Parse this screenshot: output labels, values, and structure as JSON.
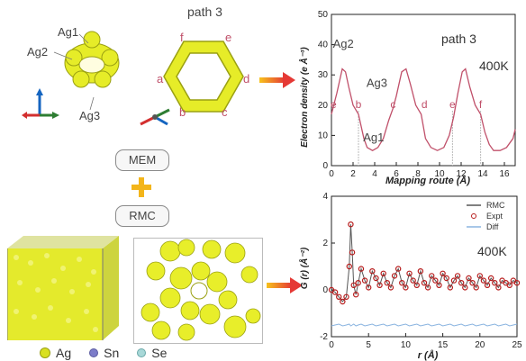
{
  "structures": {
    "ag_labels": [
      "Ag1",
      "Ag2",
      "Ag3"
    ],
    "path_title": "path 3",
    "ring_labels": [
      "f",
      "e",
      "a",
      "d",
      "b",
      "c"
    ]
  },
  "methods": {
    "mem": "MEM",
    "rmc": "RMC"
  },
  "legend": {
    "items": [
      {
        "symbol": "Ag",
        "color": "#d9e021"
      },
      {
        "symbol": "Sn",
        "color": "#7c7cc9"
      },
      {
        "symbol": "Se",
        "color": "#a8d8d8"
      }
    ]
  },
  "chart_data": [
    {
      "type": "line",
      "title": "path 3",
      "temperature": "400K",
      "xlabel": "Mapping route (Å)",
      "ylabel": "Electron density (e Å⁻³)",
      "xlim": [
        0,
        17
      ],
      "ylim": [
        0,
        50
      ],
      "xticks": [
        0,
        2,
        4,
        6,
        8,
        10,
        12,
        14,
        16
      ],
      "yticks": [
        0,
        10,
        20,
        30,
        40,
        50
      ],
      "annotations": [
        {
          "text": "Ag2",
          "x": 1.1,
          "y": 39
        },
        {
          "text": "Ag3",
          "x": 4.2,
          "y": 26
        },
        {
          "text": "Ag1",
          "x": 3.9,
          "y": 8
        },
        {
          "text": "e",
          "x": 0.2,
          "y": 19
        },
        {
          "text": "b",
          "x": 2.5,
          "y": 19
        },
        {
          "text": "c",
          "x": 5.7,
          "y": 19
        },
        {
          "text": "d",
          "x": 8.6,
          "y": 19
        },
        {
          "text": "e",
          "x": 11.2,
          "y": 19
        },
        {
          "text": "f",
          "x": 13.8,
          "y": 19
        }
      ],
      "x": [
        0,
        0.5,
        1.0,
        1.3,
        1.6,
        2.0,
        2.5,
        3.0,
        3.3,
        3.8,
        4.3,
        4.8,
        5.3,
        5.7,
        6.0,
        6.5,
        6.9,
        7.3,
        7.8,
        8.3,
        8.7,
        9.2,
        9.8,
        10.4,
        10.9,
        11.3,
        11.7,
        12.1,
        12.4,
        12.8,
        13.3,
        13.8,
        14.2,
        14.6,
        15.0,
        15.6,
        16.2,
        16.8,
        17.0
      ],
      "values": [
        17,
        24,
        32,
        31,
        26,
        20,
        17,
        9,
        6,
        5,
        6,
        9,
        15,
        19,
        23,
        31,
        32,
        27,
        20,
        17,
        9,
        6,
        5,
        6,
        10,
        16,
        24,
        31,
        32,
        26,
        20,
        17,
        11,
        7,
        5,
        5,
        6,
        9,
        12
      ]
    },
    {
      "type": "line",
      "temperature": "400K",
      "xlabel": "r (Å)",
      "ylabel": "G (r) (Å⁻²)",
      "xlim": [
        0,
        25
      ],
      "ylim": [
        -2,
        4
      ],
      "xticks": [
        0,
        5,
        10,
        15,
        20,
        25
      ],
      "yticks": [
        -2,
        0,
        2,
        4
      ],
      "legend_position": "top-right",
      "series": [
        {
          "name": "RMC",
          "color": "#555555",
          "style": "line"
        },
        {
          "name": "Expt",
          "color": "#b71c1c",
          "style": "open-circle"
        },
        {
          "name": "Diff",
          "color": "#8ab4e0",
          "style": "line"
        }
      ],
      "x": [
        0,
        0.5,
        1.0,
        1.5,
        2.0,
        2.4,
        2.6,
        2.8,
        3.0,
        3.3,
        3.6,
        4.0,
        4.5,
        5.0,
        5.5,
        6.0,
        6.5,
        7.0,
        7.5,
        8.0,
        8.5,
        9.0,
        9.5,
        10.0,
        10.5,
        11.0,
        11.5,
        12.0,
        12.5,
        13.0,
        13.5,
        14.0,
        14.5,
        15.0,
        15.5,
        16.0,
        16.5,
        17.0,
        17.5,
        18.0,
        18.5,
        19.0,
        19.5,
        20.0,
        20.5,
        21.0,
        21.5,
        22.0,
        22.5,
        23.0,
        23.5,
        24.0,
        24.5,
        25.0
      ],
      "gr": [
        0,
        -0.1,
        -0.3,
        -0.5,
        -0.3,
        1.0,
        2.8,
        1.6,
        0.2,
        -0.2,
        0.3,
        0.9,
        0.4,
        0.1,
        0.8,
        0.5,
        0.2,
        0.7,
        0.3,
        0.1,
        0.6,
        0.9,
        0.3,
        0.1,
        0.7,
        0.4,
        0.2,
        0.8,
        0.3,
        0.1,
        0.6,
        0.4,
        0.2,
        0.7,
        0.5,
        0.1,
        0.4,
        0.6,
        0.3,
        0.1,
        0.5,
        0.3,
        0.1,
        0.6,
        0.4,
        0.2,
        0.5,
        0.3,
        0.1,
        0.4,
        0.3,
        0.2,
        0.4,
        0.3
      ],
      "diff_offset": -1.5
    }
  ]
}
